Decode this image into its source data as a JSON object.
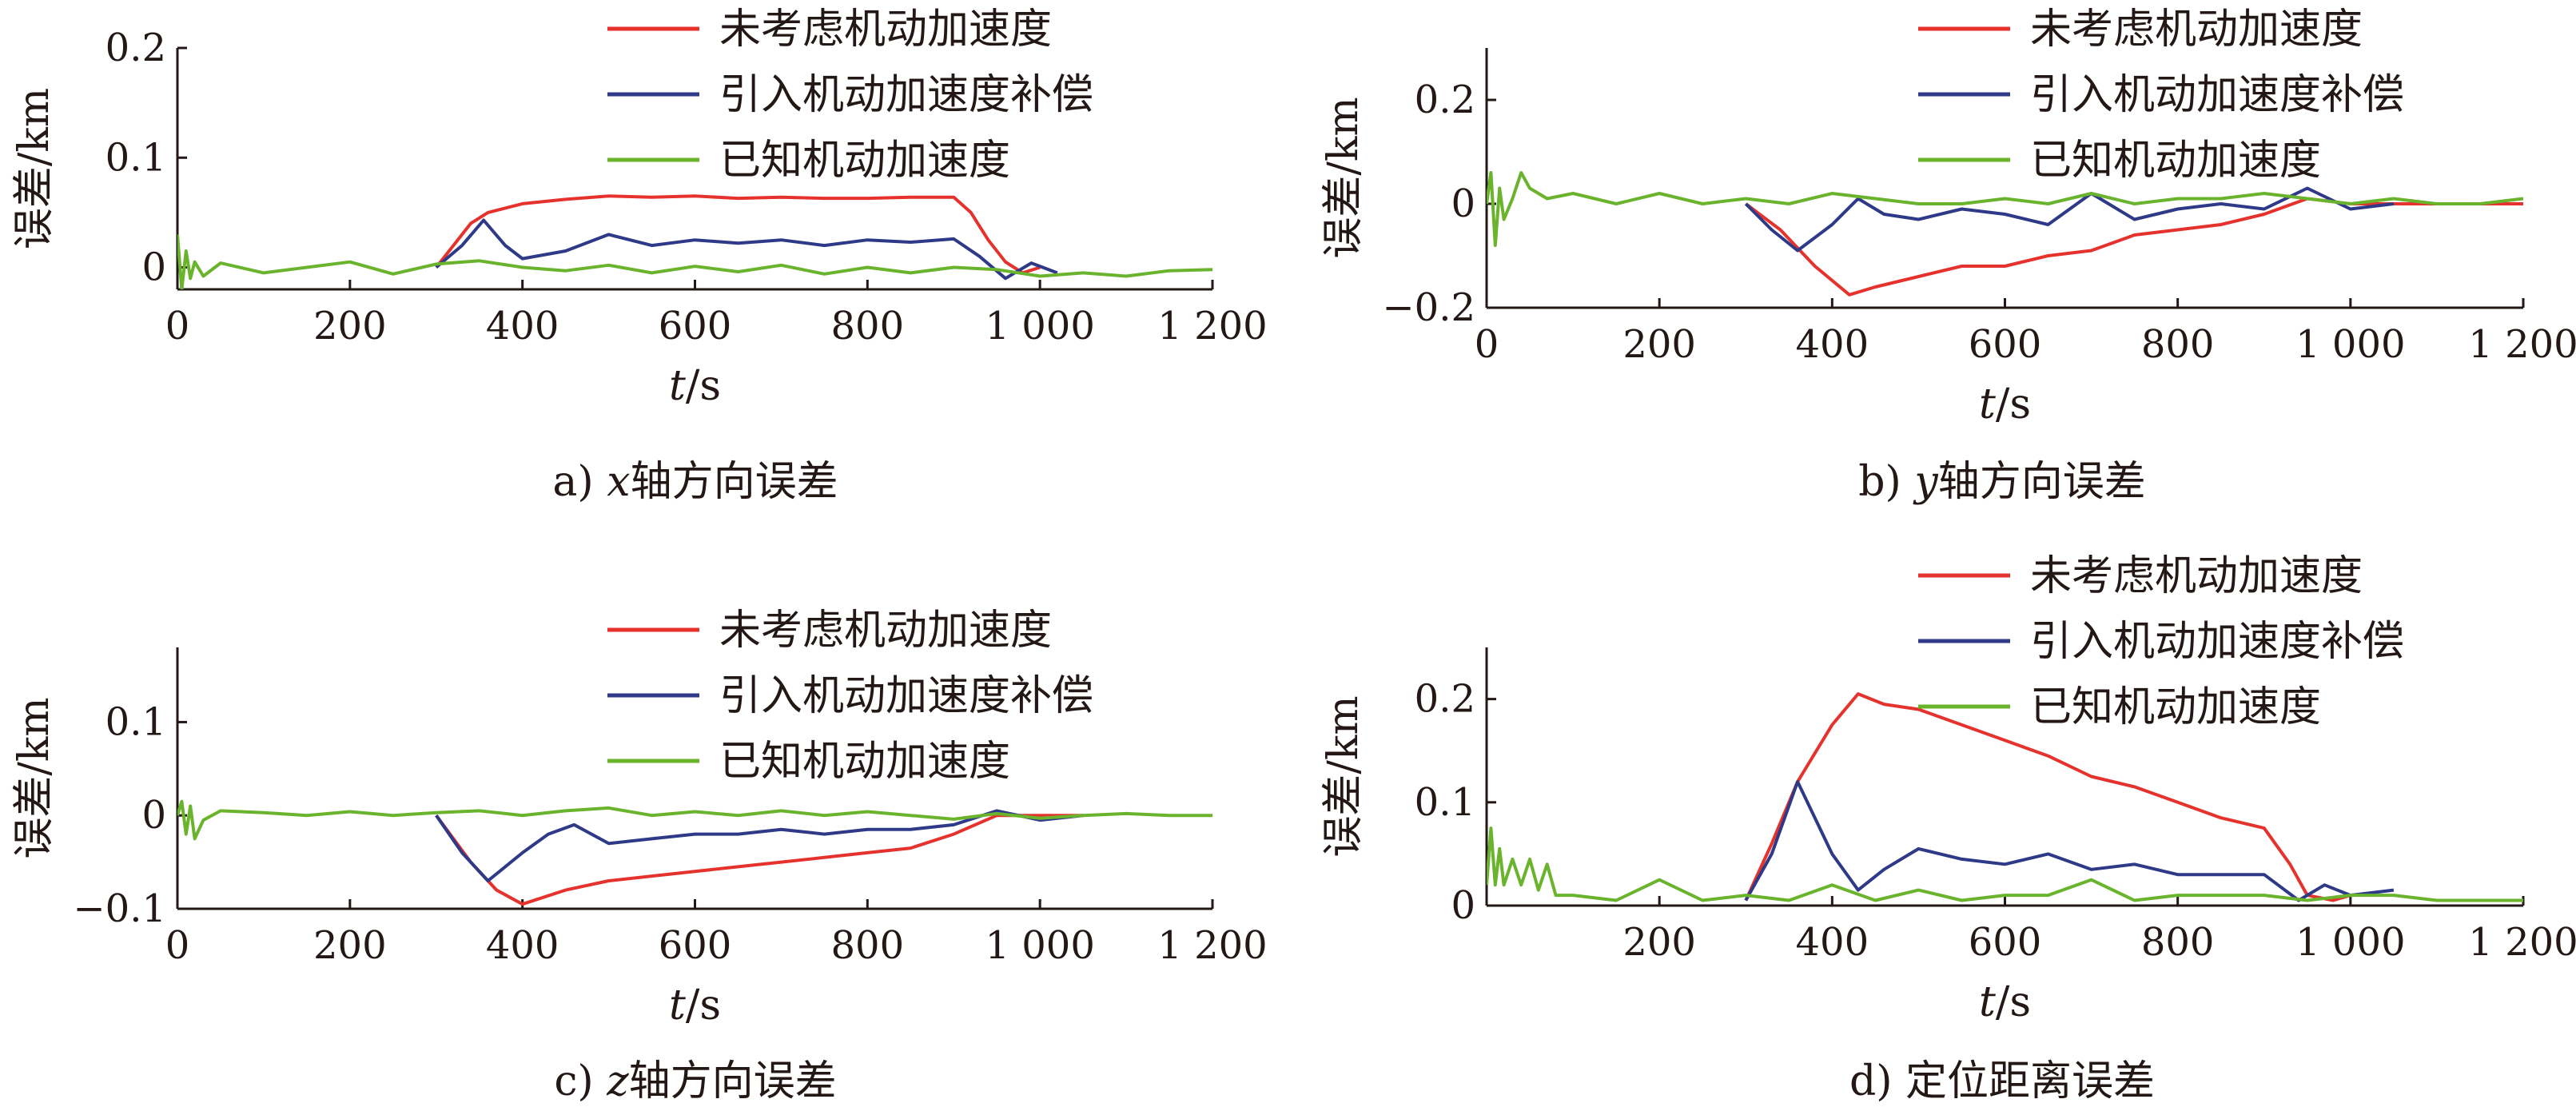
{
  "chart_data": [
    {
      "type": "line",
      "caption": {
        "prefix": "a) ",
        "var": "x",
        "rest": "轴方向误差"
      },
      "xlabel": {
        "var": "t",
        "unit": "/s"
      },
      "ylabel": "误差/km",
      "xlim": [
        0,
        1200
      ],
      "ylim": [
        -0.02,
        0.2
      ],
      "xticks": [
        0,
        200,
        400,
        600,
        800,
        1000,
        1200
      ],
      "xtick_labels": [
        "0",
        "200",
        "400",
        "600",
        "800",
        "1 000",
        "1 200"
      ],
      "yticks": [
        0,
        0.1,
        0.2
      ],
      "ytick_labels": [
        "0",
        "0.1",
        "0.2"
      ],
      "legend_position": "top-right",
      "series": [
        {
          "name": "未考虑机动加速度",
          "color": "#e5322d",
          "x": [
            300,
            320,
            340,
            360,
            400,
            450,
            500,
            550,
            600,
            650,
            700,
            750,
            800,
            850,
            900,
            920,
            940,
            960,
            980,
            1000
          ],
          "y": [
            0,
            0.02,
            0.04,
            0.05,
            0.058,
            0.062,
            0.065,
            0.064,
            0.065,
            0.063,
            0.064,
            0.063,
            0.063,
            0.064,
            0.064,
            0.05,
            0.025,
            0.005,
            -0.005,
            0
          ]
        },
        {
          "name": "引入机动加速度补偿",
          "color": "#2e3a87",
          "x": [
            300,
            330,
            355,
            380,
            400,
            450,
            500,
            550,
            600,
            650,
            700,
            750,
            800,
            850,
            900,
            930,
            960,
            990,
            1020
          ],
          "y": [
            0,
            0.02,
            0.043,
            0.02,
            0.008,
            0.015,
            0.03,
            0.02,
            0.025,
            0.022,
            0.025,
            0.02,
            0.025,
            0.023,
            0.026,
            0.01,
            -0.01,
            0.004,
            -0.005
          ]
        },
        {
          "name": "已知机动加速度",
          "color": "#6ab42d",
          "x": [
            0,
            5,
            10,
            15,
            20,
            30,
            50,
            100,
            150,
            200,
            250,
            300,
            350,
            400,
            450,
            500,
            550,
            600,
            650,
            700,
            750,
            800,
            850,
            900,
            950,
            1000,
            1050,
            1100,
            1150,
            1200
          ],
          "y": [
            0.03,
            -0.02,
            0.015,
            -0.01,
            0.005,
            -0.008,
            0.004,
            -0.005,
            0,
            0.005,
            -0.006,
            0.003,
            0.006,
            0,
            -0.003,
            0.002,
            -0.005,
            0.001,
            -0.004,
            0.002,
            -0.006,
            0,
            -0.005,
            0,
            -0.002,
            -0.008,
            -0.005,
            -0.008,
            -0.003,
            -0.002
          ]
        }
      ]
    },
    {
      "type": "line",
      "caption": {
        "prefix": "b) ",
        "var": "y",
        "rest": "轴方向误差"
      },
      "xlabel": {
        "var": "t",
        "unit": "/s"
      },
      "ylabel": "误差/km",
      "xlim": [
        0,
        1200
      ],
      "ylim": [
        -0.2,
        0.3
      ],
      "xticks": [
        0,
        200,
        400,
        600,
        800,
        1000,
        1200
      ],
      "xtick_labels": [
        "0",
        "200",
        "400",
        "600",
        "800",
        "1 000",
        "1 200"
      ],
      "yticks": [
        -0.2,
        0,
        0.2
      ],
      "ytick_labels": [
        "−0.2",
        "0",
        "0.2"
      ],
      "legend_position": "top-right",
      "series": [
        {
          "name": "未考虑机动加速度",
          "color": "#e5322d",
          "x": [
            300,
            340,
            380,
            420,
            450,
            500,
            550,
            600,
            650,
            700,
            750,
            800,
            850,
            900,
            950,
            1000,
            1050,
            1100,
            1150,
            1200
          ],
          "y": [
            0,
            -0.05,
            -0.12,
            -0.175,
            -0.16,
            -0.14,
            -0.12,
            -0.12,
            -0.1,
            -0.09,
            -0.06,
            -0.05,
            -0.04,
            -0.02,
            0.01,
            0,
            0,
            0,
            0,
            0
          ]
        },
        {
          "name": "引入机动加速度补偿",
          "color": "#2e3a87",
          "x": [
            300,
            330,
            360,
            400,
            430,
            460,
            500,
            550,
            600,
            650,
            700,
            750,
            800,
            850,
            900,
            950,
            1000,
            1050
          ],
          "y": [
            0,
            -0.05,
            -0.09,
            -0.04,
            0.01,
            -0.02,
            -0.03,
            -0.01,
            -0.02,
            -0.04,
            0.02,
            -0.03,
            -0.01,
            0,
            -0.01,
            0.03,
            -0.01,
            0
          ]
        },
        {
          "name": "已知机动加速度",
          "color": "#6ab42d",
          "x": [
            0,
            5,
            10,
            15,
            20,
            30,
            40,
            50,
            70,
            100,
            150,
            200,
            250,
            300,
            350,
            400,
            450,
            500,
            550,
            600,
            650,
            700,
            750,
            800,
            850,
            900,
            950,
            1000,
            1050,
            1100,
            1150,
            1200
          ],
          "y": [
            0,
            0.06,
            -0.08,
            0.03,
            -0.03,
            0.01,
            0.06,
            0.03,
            0.01,
            0.02,
            0,
            0.02,
            0,
            0.01,
            0,
            0.02,
            0.01,
            0,
            0,
            0.01,
            0,
            0.02,
            0,
            0.01,
            0.01,
            0.02,
            0.01,
            0,
            0.01,
            0,
            0,
            0.01
          ]
        }
      ]
    },
    {
      "type": "line",
      "caption": {
        "prefix": "c) ",
        "var": "z",
        "rest": "轴方向误差"
      },
      "xlabel": {
        "var": "t",
        "unit": "/s"
      },
      "ylabel": "误差/km",
      "xlim": [
        0,
        1200
      ],
      "ylim": [
        -0.1,
        0.18
      ],
      "xticks": [
        0,
        200,
        400,
        600,
        800,
        1000,
        1200
      ],
      "xtick_labels": [
        "0",
        "200",
        "400",
        "600",
        "800",
        "1 000",
        "1 200"
      ],
      "yticks": [
        -0.1,
        0,
        0.1
      ],
      "ytick_labels": [
        "−0.1",
        "0",
        "0.1"
      ],
      "legend_position": "top-right",
      "series": [
        {
          "name": "未考虑机动加速度",
          "color": "#e5322d",
          "x": [
            300,
            340,
            370,
            400,
            450,
            500,
            550,
            600,
            650,
            700,
            750,
            800,
            850,
            900,
            950,
            1000,
            1050
          ],
          "y": [
            0,
            -0.05,
            -0.08,
            -0.095,
            -0.08,
            -0.07,
            -0.065,
            -0.06,
            -0.055,
            -0.05,
            -0.045,
            -0.04,
            -0.035,
            -0.02,
            0,
            0,
            0
          ]
        },
        {
          "name": "引入机动加速度补偿",
          "color": "#2e3a87",
          "x": [
            300,
            330,
            360,
            400,
            430,
            460,
            500,
            550,
            600,
            650,
            700,
            750,
            800,
            850,
            900,
            950,
            1000,
            1050
          ],
          "y": [
            0,
            -0.04,
            -0.07,
            -0.04,
            -0.02,
            -0.01,
            -0.03,
            -0.025,
            -0.02,
            -0.02,
            -0.015,
            -0.02,
            -0.015,
            -0.015,
            -0.01,
            0.005,
            -0.005,
            0
          ]
        },
        {
          "name": "已知机动加速度",
          "color": "#6ab42d",
          "x": [
            0,
            5,
            10,
            15,
            20,
            30,
            50,
            100,
            150,
            200,
            250,
            300,
            350,
            400,
            450,
            500,
            550,
            600,
            650,
            700,
            750,
            800,
            850,
            900,
            950,
            1000,
            1050,
            1100,
            1150,
            1200
          ],
          "y": [
            0,
            0.015,
            -0.02,
            0.01,
            -0.025,
            -0.005,
            0.005,
            0.003,
            0,
            0.004,
            0,
            0.003,
            0.005,
            0,
            0.005,
            0.008,
            0,
            0.004,
            0,
            0.005,
            0,
            0.004,
            0,
            -0.004,
            0.002,
            -0.003,
            0,
            0.002,
            0,
            0
          ]
        }
      ]
    },
    {
      "type": "line",
      "caption": {
        "prefix": "d) ",
        "var": "",
        "rest": "定位距离误差"
      },
      "xlabel": {
        "var": "t",
        "unit": "/s"
      },
      "ylabel": "误差/km",
      "xlim": [
        0,
        1200
      ],
      "ylim": [
        0,
        0.25
      ],
      "xticks": [
        200,
        400,
        600,
        800,
        1000,
        1200
      ],
      "xtick_labels": [
        "200",
        "400",
        "600",
        "800",
        "1 000",
        "1 200"
      ],
      "yticks": [
        0,
        0.1,
        0.2
      ],
      "ytick_labels": [
        "0",
        "0.1",
        "0.2"
      ],
      "legend_position": "top-right",
      "series": [
        {
          "name": "未考虑机动加速度",
          "color": "#e5322d",
          "x": [
            300,
            330,
            360,
            400,
            430,
            460,
            500,
            550,
            600,
            650,
            700,
            750,
            800,
            850,
            900,
            930,
            950,
            980,
            1000
          ],
          "y": [
            0.005,
            0.06,
            0.12,
            0.175,
            0.205,
            0.195,
            0.19,
            0.175,
            0.16,
            0.145,
            0.125,
            0.115,
            0.1,
            0.085,
            0.075,
            0.04,
            0.01,
            0.005,
            0.01
          ]
        },
        {
          "name": "引入机动加速度补偿",
          "color": "#2e3a87",
          "x": [
            300,
            330,
            360,
            400,
            430,
            460,
            500,
            550,
            600,
            650,
            700,
            750,
            800,
            850,
            900,
            940,
            970,
            1000,
            1050
          ],
          "y": [
            0.005,
            0.05,
            0.12,
            0.05,
            0.015,
            0.035,
            0.055,
            0.045,
            0.04,
            0.05,
            0.035,
            0.04,
            0.03,
            0.03,
            0.03,
            0.005,
            0.02,
            0.01,
            0.015
          ]
        },
        {
          "name": "已知机动加速度",
          "color": "#6ab42d",
          "x": [
            0,
            5,
            10,
            15,
            20,
            30,
            40,
            50,
            60,
            70,
            80,
            100,
            150,
            200,
            250,
            300,
            350,
            400,
            450,
            500,
            550,
            600,
            650,
            700,
            750,
            800,
            850,
            900,
            950,
            1000,
            1050,
            1100,
            1150,
            1200
          ],
          "y": [
            0.02,
            0.075,
            0.02,
            0.055,
            0.02,
            0.045,
            0.02,
            0.045,
            0.015,
            0.04,
            0.01,
            0.01,
            0.005,
            0.025,
            0.005,
            0.01,
            0.005,
            0.02,
            0.005,
            0.015,
            0.005,
            0.01,
            0.01,
            0.025,
            0.005,
            0.01,
            0.01,
            0.01,
            0.005,
            0.01,
            0.01,
            0.005,
            0.005,
            0.005
          ]
        }
      ]
    }
  ]
}
